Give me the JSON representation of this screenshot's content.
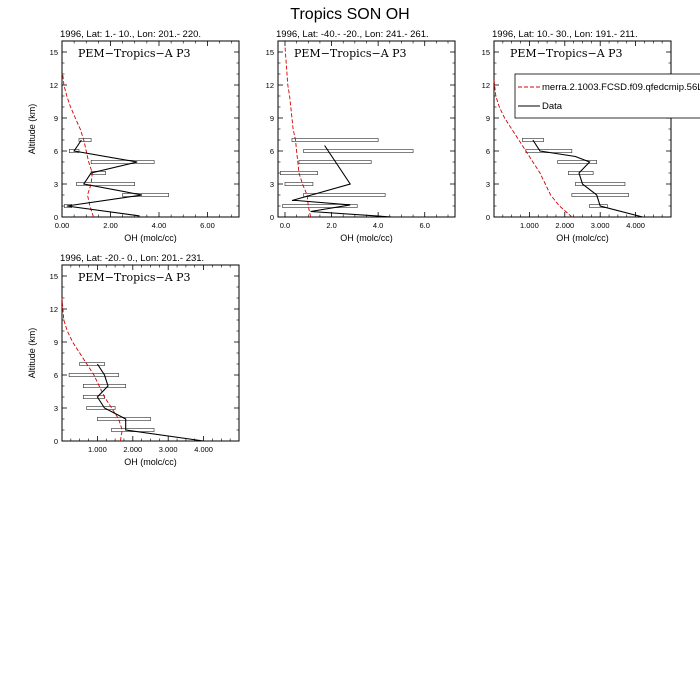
{
  "figure": {
    "title": "Tropics SON OH"
  },
  "legend": {
    "entries": [
      {
        "label": "merra.2.1003.FCSD.f09.qfedcmip.56L",
        "color": "#d40000",
        "style": "dashed"
      },
      {
        "label": "Data",
        "color": "#000000",
        "style": "solid"
      }
    ]
  },
  "chart_data": [
    {
      "type": "line",
      "title": "1996, Lat: 1.- 10., Lon: 201.- 220.",
      "annotation": "PEM−Tropics−A P3",
      "xlabel": "OH (molc/cc)",
      "ylabel": "Altitude (km)",
      "xlim": [
        0,
        7.3
      ],
      "ylim": [
        0,
        16
      ],
      "x_ticks": [
        0,
        2,
        4,
        6
      ],
      "x_tick_labels": [
        "0.00",
        "2.00",
        "4.00",
        "6.00"
      ],
      "y_ticks": [
        0,
        3,
        6,
        9,
        12,
        15
      ],
      "y_tick_labels": [
        "0",
        "3",
        "6",
        "9",
        "12",
        "15"
      ],
      "series": [
        {
          "name": "merra.2.1003.FCSD.f09.qfedcmip.56L",
          "color": "#d40000",
          "style": "dashed",
          "x": [
            1.3,
            1.15,
            1.05,
            1.2,
            1.25,
            1.1,
            1.0,
            0.9,
            0.75,
            0.55,
            0.35,
            0.2,
            0.08,
            0.03
          ],
          "y": [
            0,
            1,
            2,
            3,
            4,
            5,
            6,
            7,
            8,
            9,
            10,
            11,
            12,
            13
          ]
        },
        {
          "name": "Data",
          "color": "#000000",
          "style": "solid",
          "x": [
            3.2,
            0.2,
            3.3,
            0.9,
            1.2,
            3.1,
            0.5,
            0.8
          ],
          "y": [
            0.1,
            1,
            2,
            3,
            4,
            5,
            6,
            7
          ]
        }
      ],
      "error_bars": [
        {
          "y": 1,
          "xmin": 0.1,
          "xmax": 0.4
        },
        {
          "y": 2,
          "xmin": 2.5,
          "xmax": 4.4
        },
        {
          "y": 3,
          "xmin": 0.6,
          "xmax": 3.0
        },
        {
          "y": 4,
          "xmin": 1.2,
          "xmax": 1.8
        },
        {
          "y": 5,
          "xmin": 1.2,
          "xmax": 3.8
        },
        {
          "y": 6,
          "xmin": 0.3,
          "xmax": 0.7
        },
        {
          "y": 7,
          "xmin": 0.7,
          "xmax": 1.2
        }
      ]
    },
    {
      "type": "line",
      "title": "1996, Lat: -40.- -20., Lon: 241.- 261.",
      "annotation": "PEM−Tropics−A P3",
      "xlabel": "OH (molc/cc)",
      "ylabel": "",
      "xlim": [
        -0.3,
        7.3
      ],
      "ylim": [
        0,
        16
      ],
      "x_ticks": [
        0,
        2,
        4,
        6
      ],
      "x_tick_labels": [
        "0.0",
        "2.0",
        "4.0",
        "6.0"
      ],
      "y_ticks": [
        0,
        3,
        6,
        9,
        12,
        15
      ],
      "y_tick_labels": [
        "0",
        "3",
        "6",
        "9",
        "12",
        "15"
      ],
      "series": [
        {
          "name": "merra.2.1003.FCSD.f09.qfedcmip.56L",
          "color": "#d40000",
          "style": "dashed",
          "x": [
            1.1,
            1.0,
            0.95,
            0.75,
            0.6,
            0.55,
            0.5,
            0.45,
            0.35,
            0.25,
            0.2,
            0.12,
            0.05,
            0.0
          ],
          "y": [
            0,
            1,
            2,
            3,
            4,
            5,
            6,
            7,
            8,
            10,
            11,
            12,
            14,
            15.5
          ]
        },
        {
          "name": "Data",
          "color": "#000000",
          "style": "solid",
          "x": [
            4.6,
            1.1,
            2.8,
            0.5,
            0.3,
            2.8,
            1.7
          ],
          "y": [
            0,
            0.5,
            1.1,
            1.5,
            1.5,
            3,
            6.5
          ]
        }
      ],
      "error_bars": [
        {
          "y": 1,
          "xmin": -0.1,
          "xmax": 3.1
        },
        {
          "y": 2,
          "xmin": 0.8,
          "xmax": 4.3
        },
        {
          "y": 3,
          "xmin": 0.0,
          "xmax": 1.2
        },
        {
          "y": 4,
          "xmin": -0.2,
          "xmax": 1.4
        },
        {
          "y": 5,
          "xmin": 0.6,
          "xmax": 3.7
        },
        {
          "y": 6,
          "xmin": 0.8,
          "xmax": 5.5
        },
        {
          "y": 7,
          "xmin": 0.3,
          "xmax": 4.0
        }
      ]
    },
    {
      "type": "line",
      "title": "1996, Lat: 10.- 30., Lon: 191.- 211.",
      "annotation": "PEM−Tropics−A P3",
      "xlabel": "OH (molc/cc)",
      "ylabel": "",
      "xlim": [
        0,
        5
      ],
      "ylim": [
        0,
        16
      ],
      "x_ticks": [
        1,
        2,
        3,
        4
      ],
      "x_tick_labels": [
        "1.000",
        "2.000",
        "3.000",
        "4.000"
      ],
      "y_ticks": [
        0,
        3,
        6,
        9,
        12,
        15
      ],
      "y_tick_labels": [
        "0",
        "3",
        "6",
        "9",
        "12",
        "15"
      ],
      "series": [
        {
          "name": "merra.2.1003.FCSD.f09.qfedcmip.56L",
          "color": "#d40000",
          "style": "dashed",
          "x": [
            2.2,
            1.85,
            1.6,
            1.45,
            1.3,
            1.1,
            0.9,
            0.7,
            0.5,
            0.3,
            0.15,
            0.05,
            0.0
          ],
          "y": [
            0,
            1,
            2,
            3,
            4,
            5,
            6,
            7,
            8,
            9,
            10,
            11,
            12.5
          ]
        },
        {
          "name": "Data",
          "color": "#000000",
          "style": "solid",
          "x": [
            4.2,
            3.0,
            2.9,
            2.5,
            2.4,
            2.7,
            2.3,
            1.3,
            1.1
          ],
          "y": [
            0,
            1,
            2,
            3,
            4,
            5,
            5.5,
            6,
            7
          ]
        }
      ],
      "error_bars": [
        {
          "y": 1,
          "xmin": 2.7,
          "xmax": 3.2
        },
        {
          "y": 2,
          "xmin": 2.2,
          "xmax": 3.8
        },
        {
          "y": 3,
          "xmin": 2.3,
          "xmax": 3.7
        },
        {
          "y": 4,
          "xmin": 2.1,
          "xmax": 2.8
        },
        {
          "y": 5,
          "xmin": 1.8,
          "xmax": 2.9
        },
        {
          "y": 6,
          "xmin": 0.9,
          "xmax": 2.2
        },
        {
          "y": 7,
          "xmin": 0.8,
          "xmax": 1.4
        }
      ]
    },
    {
      "type": "line",
      "title": "1996, Lat: -20.- 0., Lon: 201.- 231.",
      "annotation": "PEM−Tropics−A P3",
      "xlabel": "OH (molc/cc)",
      "ylabel": "Altitude (km)",
      "xlim": [
        0,
        5
      ],
      "ylim": [
        0,
        16
      ],
      "x_ticks": [
        1,
        2,
        3,
        4
      ],
      "x_tick_labels": [
        "1.000",
        "2.000",
        "3.000",
        "4.000"
      ],
      "y_ticks": [
        0,
        3,
        6,
        9,
        12,
        15
      ],
      "y_tick_labels": [
        "0",
        "3",
        "6",
        "9",
        "12",
        "15"
      ],
      "series": [
        {
          "name": "merra.2.1003.FCSD.f09.qfedcmip.56L",
          "color": "#d40000",
          "style": "dashed",
          "x": [
            1.65,
            1.7,
            1.6,
            1.4,
            1.2,
            1.05,
            0.9,
            0.7,
            0.5,
            0.3,
            0.15,
            0.05,
            0.0
          ],
          "y": [
            0,
            1,
            2,
            3,
            4,
            5,
            6,
            7,
            8,
            9,
            10,
            11,
            13
          ]
        },
        {
          "name": "Data",
          "color": "#000000",
          "style": "solid",
          "x": [
            4.0,
            1.8,
            1.8,
            1.2,
            1.0,
            1.3,
            1.2,
            1.0
          ],
          "y": [
            0,
            1,
            2,
            3,
            4,
            5,
            6,
            7
          ]
        }
      ],
      "error_bars": [
        {
          "y": 1,
          "xmin": 1.4,
          "xmax": 2.6
        },
        {
          "y": 2,
          "xmin": 1.0,
          "xmax": 2.5
        },
        {
          "y": 3,
          "xmin": 0.7,
          "xmax": 1.5
        },
        {
          "y": 4,
          "xmin": 0.6,
          "xmax": 1.2
        },
        {
          "y": 5,
          "xmin": 0.6,
          "xmax": 1.8
        },
        {
          "y": 6,
          "xmin": 0.2,
          "xmax": 1.6
        },
        {
          "y": 7,
          "xmin": 0.5,
          "xmax": 1.2
        }
      ]
    }
  ]
}
